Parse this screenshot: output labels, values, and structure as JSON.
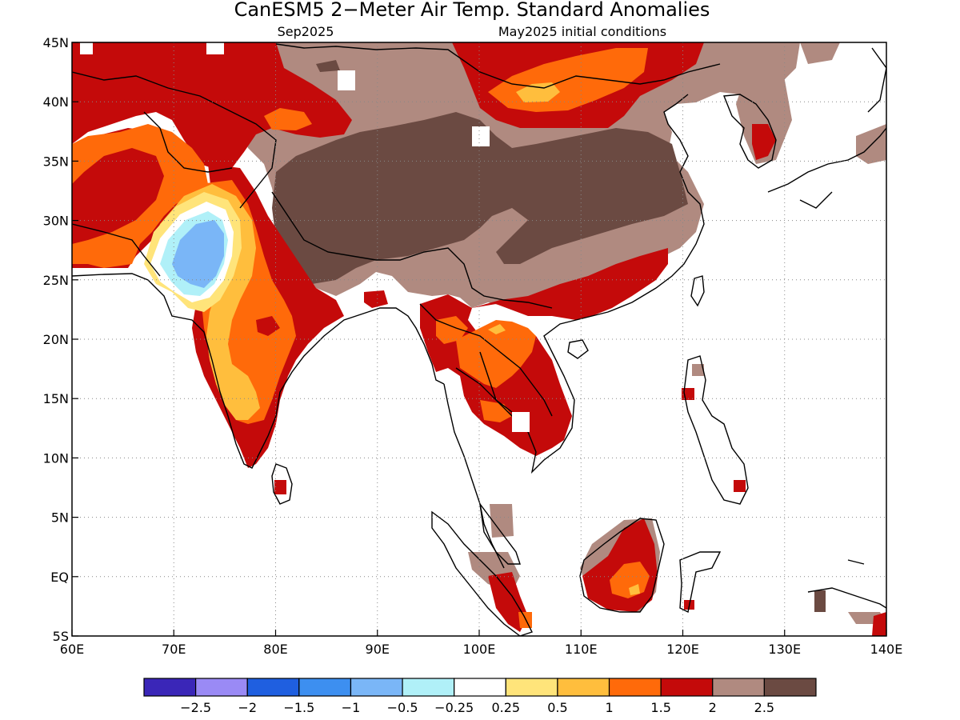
{
  "title": "CanESM5 2−Meter Air Temp. Standard Anomalies",
  "subtitle_left": "Sep2025",
  "subtitle_right": "May2025 initial conditions",
  "map": {
    "lon_range": [
      60,
      140
    ],
    "lat_range": [
      -5,
      45
    ],
    "lon_ticks": [
      {
        "v": 60,
        "label": "60E"
      },
      {
        "v": 70,
        "label": "70E"
      },
      {
        "v": 80,
        "label": "80E"
      },
      {
        "v": 90,
        "label": "90E"
      },
      {
        "v": 100,
        "label": "100E"
      },
      {
        "v": 110,
        "label": "110E"
      },
      {
        "v": 120,
        "label": "120E"
      },
      {
        "v": 130,
        "label": "130E"
      },
      {
        "v": 140,
        "label": "140E"
      }
    ],
    "lat_ticks": [
      {
        "v": 45,
        "label": "45N"
      },
      {
        "v": 40,
        "label": "40N"
      },
      {
        "v": 35,
        "label": "35N"
      },
      {
        "v": 30,
        "label": "30N"
      },
      {
        "v": 25,
        "label": "25N"
      },
      {
        "v": 20,
        "label": "20N"
      },
      {
        "v": 15,
        "label": "15N"
      },
      {
        "v": 10,
        "label": "10N"
      },
      {
        "v": 5,
        "label": "5N"
      },
      {
        "v": 0,
        "label": "EQ"
      },
      {
        "v": -5,
        "label": "5S"
      }
    ],
    "grid": true
  },
  "colorbar": {
    "colors": [
      "#3a26b8",
      "#9a8af5",
      "#1f5fe0",
      "#3d8ff0",
      "#7ab6f7",
      "#b0f0f8",
      "#ffffff",
      "#ffe47a",
      "#ffbe3d",
      "#ff6a0a",
      "#c40a0a",
      "#b08a80",
      "#6b4a42"
    ],
    "labels": [
      "−2.5",
      "−2",
      "−1.5",
      "−1",
      "−0.5",
      "−0.25",
      "0.25",
      "0.5",
      "1",
      "1.5",
      "2",
      "2.5"
    ]
  }
}
